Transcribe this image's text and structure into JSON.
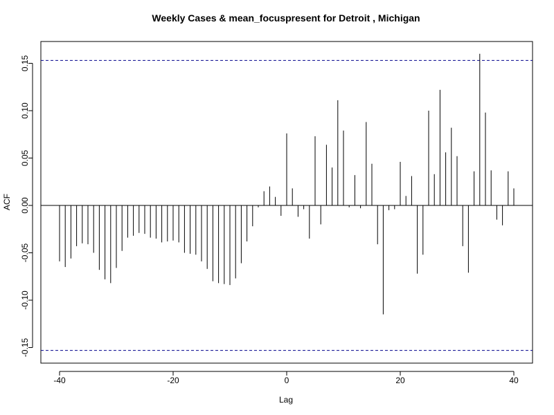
{
  "chart_data": {
    "type": "bar",
    "title": "Weekly Cases & mean_focuspresent for Detroit , Michigan",
    "xlabel": "Lag",
    "ylabel": "ACF",
    "xlim": [
      -40,
      40
    ],
    "ylim": [
      -0.15,
      0.15
    ],
    "x_ticks": [
      -40,
      -20,
      0,
      20,
      40
    ],
    "x_tick_labels": [
      "-40",
      "-20",
      "0",
      "20",
      "40"
    ],
    "y_ticks": [
      -0.15,
      -0.1,
      -0.05,
      0.0,
      0.05,
      0.1,
      0.15
    ],
    "y_tick_labels": [
      "-0.15",
      "-0.10",
      "-0.05",
      "0.00",
      "0.05",
      "0.10",
      "0.15"
    ],
    "confidence_bound": 0.153,
    "lags": [
      -40,
      -39,
      -38,
      -37,
      -36,
      -35,
      -34,
      -33,
      -32,
      -31,
      -30,
      -29,
      -28,
      -27,
      -26,
      -25,
      -24,
      -23,
      -22,
      -21,
      -20,
      -19,
      -18,
      -17,
      -16,
      -15,
      -14,
      -13,
      -12,
      -11,
      -10,
      -9,
      -8,
      -7,
      -6,
      -5,
      -4,
      -3,
      -2,
      -1,
      0,
      1,
      2,
      3,
      4,
      5,
      6,
      7,
      8,
      9,
      10,
      11,
      12,
      13,
      14,
      15,
      16,
      17,
      18,
      19,
      20,
      21,
      22,
      23,
      24,
      25,
      26,
      27,
      28,
      29,
      30,
      31,
      32,
      33,
      34,
      35,
      36,
      37,
      38,
      39,
      40
    ],
    "values": [
      -0.059,
      -0.065,
      -0.056,
      -0.043,
      -0.04,
      -0.041,
      -0.05,
      -0.068,
      -0.078,
      -0.082,
      -0.066,
      -0.048,
      -0.034,
      -0.032,
      -0.029,
      -0.03,
      -0.034,
      -0.035,
      -0.039,
      -0.038,
      -0.037,
      -0.039,
      -0.05,
      -0.051,
      -0.052,
      -0.059,
      -0.067,
      -0.08,
      -0.082,
      -0.083,
      -0.084,
      -0.077,
      -0.061,
      -0.038,
      -0.022,
      -0.002,
      0.015,
      0.02,
      0.009,
      -0.011,
      0.076,
      0.018,
      -0.012,
      -0.004,
      -0.035,
      0.073,
      -0.02,
      0.064,
      0.04,
      0.111,
      0.079,
      -0.002,
      0.032,
      -0.003,
      0.088,
      0.044,
      -0.041,
      -0.115,
      -0.005,
      -0.004,
      0.046,
      0.01,
      0.031,
      -0.072,
      -0.052,
      0.1,
      0.033,
      0.122,
      0.056,
      0.082,
      0.052,
      -0.043,
      -0.071,
      0.036,
      0.16,
      0.098,
      0.037,
      -0.015,
      -0.021,
      0.036,
      0.018
    ]
  }
}
